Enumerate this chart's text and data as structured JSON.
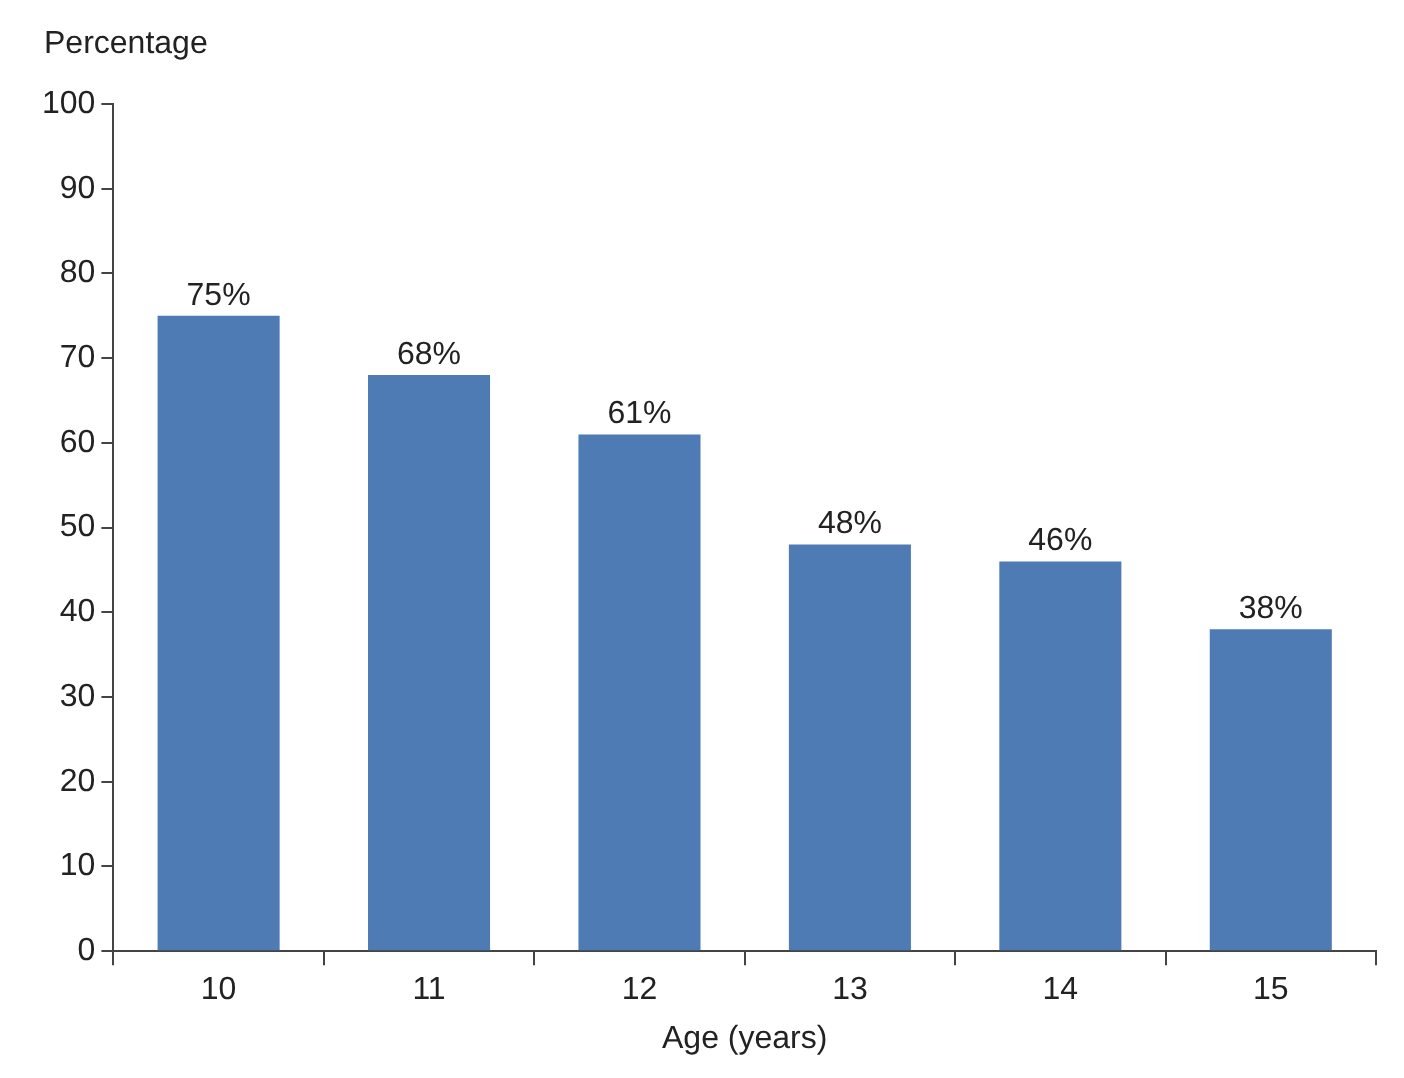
{
  "chart_data": {
    "type": "bar",
    "ylabel": "Percentage",
    "xlabel": "Age (years)",
    "categories": [
      "10",
      "11",
      "12",
      "13",
      "14",
      "15"
    ],
    "values": [
      75,
      68,
      61,
      48,
      46,
      38
    ],
    "value_labels": [
      "75%",
      "68%",
      "61%",
      "48%",
      "46%",
      "38%"
    ],
    "color": "#4f7bb4",
    "ylim": [
      0,
      100
    ],
    "yticks": [
      0,
      10,
      20,
      30,
      40,
      50,
      60,
      70,
      80,
      90,
      100
    ],
    "grid": false,
    "legend": false
  }
}
